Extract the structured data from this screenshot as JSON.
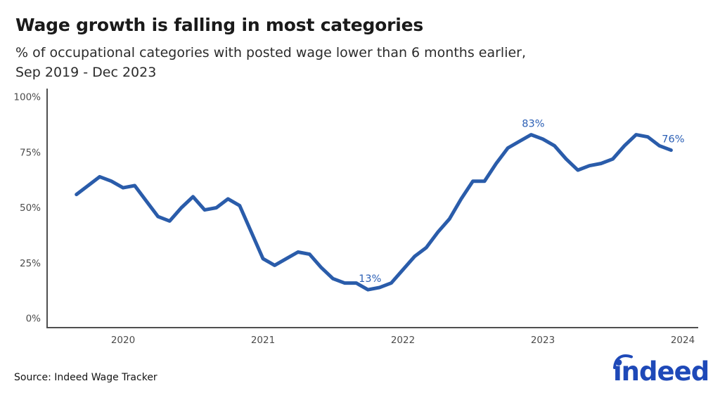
{
  "header": {
    "title": "Wage growth is falling in most categories",
    "subtitle_line1": "% of occupational categories with posted wage lower than 6 months earlier,",
    "subtitle_line2": "Sep 2019 - Dec 2023"
  },
  "footer": {
    "source": "Source: Indeed Wage Tracker",
    "logo_text": "indeed",
    "logo_color": "#1e49b8"
  },
  "chart_data": {
    "type": "line",
    "title": "Wage growth is falling in most categories",
    "subtitle": "% of occupational categories with posted wage lower than 6 months earlier, Sep 2019 - Dec 2023",
    "unit": "%",
    "grid": false,
    "legend": "none",
    "line_color": "#2a5caa",
    "annotation_color": "#2b5fb5",
    "axis_color": "#4f4f4f",
    "ylim": [
      0,
      100
    ],
    "yticks": [
      0,
      25,
      50,
      75,
      100
    ],
    "ytick_labels": [
      "0%",
      "25%",
      "50%",
      "75%",
      "100%"
    ],
    "xtick_labels": [
      "2020",
      "2021",
      "2022",
      "2023",
      "2024"
    ],
    "x": [
      "Sep 2019",
      "Oct 2019",
      "Nov 2019",
      "Dec 2019",
      "Jan 2020",
      "Feb 2020",
      "Mar 2020",
      "Apr 2020",
      "May 2020",
      "Jun 2020",
      "Jul 2020",
      "Aug 2020",
      "Sep 2020",
      "Oct 2020",
      "Nov 2020",
      "Dec 2020",
      "Jan 2021",
      "Feb 2021",
      "Mar 2021",
      "Apr 2021",
      "May 2021",
      "Jun 2021",
      "Jul 2021",
      "Aug 2021",
      "Sep 2021",
      "Oct 2021",
      "Nov 2021",
      "Dec 2021",
      "Jan 2022",
      "Feb 2022",
      "Mar 2022",
      "Apr 2022",
      "May 2022",
      "Jun 2022",
      "Jul 2022",
      "Aug 2022",
      "Sep 2022",
      "Oct 2022",
      "Nov 2022",
      "Dec 2022",
      "Jan 2023",
      "Feb 2023",
      "Mar 2023",
      "Apr 2023",
      "May 2023",
      "Jun 2023",
      "Jul 2023",
      "Aug 2023",
      "Sep 2023",
      "Oct 2023",
      "Nov 2023",
      "Dec 2023"
    ],
    "values": [
      56,
      60,
      64,
      62,
      59,
      60,
      53,
      46,
      44,
      50,
      55,
      49,
      50,
      54,
      51,
      39,
      27,
      24,
      27,
      30,
      29,
      23,
      18,
      16,
      16,
      13,
      14,
      16,
      22,
      28,
      32,
      39,
      45,
      54,
      62,
      62,
      70,
      77,
      80,
      83,
      81,
      78,
      72,
      67,
      69,
      70,
      72,
      78,
      83,
      82,
      78,
      76
    ],
    "annotations": [
      {
        "month": "Oct 2021",
        "value": 13,
        "label": "13%"
      },
      {
        "month": "Dec 2022",
        "value": 83,
        "label": "83%"
      },
      {
        "month": "Dec 2023",
        "value": 76,
        "label": "76%"
      }
    ]
  }
}
